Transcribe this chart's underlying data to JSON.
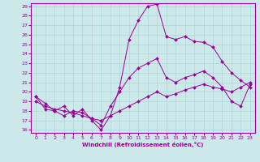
{
  "xlabel": "Windchill (Refroidissement éolien,°C)",
  "bg_color": "#cce8e8",
  "line_color": "#990099",
  "grid_color": "#aad8d8",
  "xlim": [
    0,
    23
  ],
  "ylim": [
    16,
    29
  ],
  "ytick_vals": [
    16,
    17,
    18,
    19,
    20,
    21,
    22,
    23,
    24,
    25,
    26,
    27,
    28,
    29
  ],
  "xtick_vals": [
    0,
    1,
    2,
    3,
    4,
    5,
    6,
    7,
    8,
    9,
    10,
    11,
    12,
    13,
    14,
    15,
    16,
    17,
    18,
    19,
    20,
    21,
    22,
    23
  ],
  "series": [
    {
      "x": [
        0,
        1,
        2,
        3,
        4,
        5,
        6,
        7,
        8,
        9,
        10,
        11,
        12,
        13,
        14,
        15,
        16,
        17,
        18,
        19,
        20,
        21,
        22,
        23
      ],
      "y": [
        19.5,
        18.8,
        18.0,
        18.5,
        17.5,
        18.2,
        17.0,
        16.0,
        17.5,
        20.5,
        25.5,
        27.5,
        29.0,
        29.2,
        25.8,
        25.5,
        25.8,
        25.3,
        25.2,
        24.7,
        23.2,
        22.0,
        21.2,
        20.5
      ]
    },
    {
      "x": [
        0,
        1,
        2,
        3,
        4,
        5,
        6,
        7,
        8,
        9,
        10,
        11,
        12,
        13,
        14,
        15,
        16,
        17,
        18,
        19,
        20,
        21,
        22,
        23
      ],
      "y": [
        19.5,
        18.2,
        18.0,
        17.5,
        18.0,
        17.8,
        17.2,
        16.5,
        18.5,
        20.0,
        21.5,
        22.5,
        23.0,
        23.5,
        21.5,
        21.0,
        21.5,
        21.8,
        22.2,
        21.5,
        20.5,
        19.0,
        18.5,
        20.8
      ]
    },
    {
      "x": [
        0,
        1,
        2,
        3,
        4,
        5,
        6,
        7,
        8,
        9,
        10,
        11,
        12,
        13,
        14,
        15,
        16,
        17,
        18,
        19,
        20,
        21,
        22,
        23
      ],
      "y": [
        19.0,
        18.5,
        18.2,
        18.0,
        17.8,
        17.5,
        17.2,
        17.0,
        17.5,
        18.0,
        18.5,
        19.0,
        19.5,
        20.0,
        19.5,
        19.8,
        20.2,
        20.5,
        20.8,
        20.5,
        20.3,
        20.0,
        20.5,
        21.0
      ]
    }
  ]
}
